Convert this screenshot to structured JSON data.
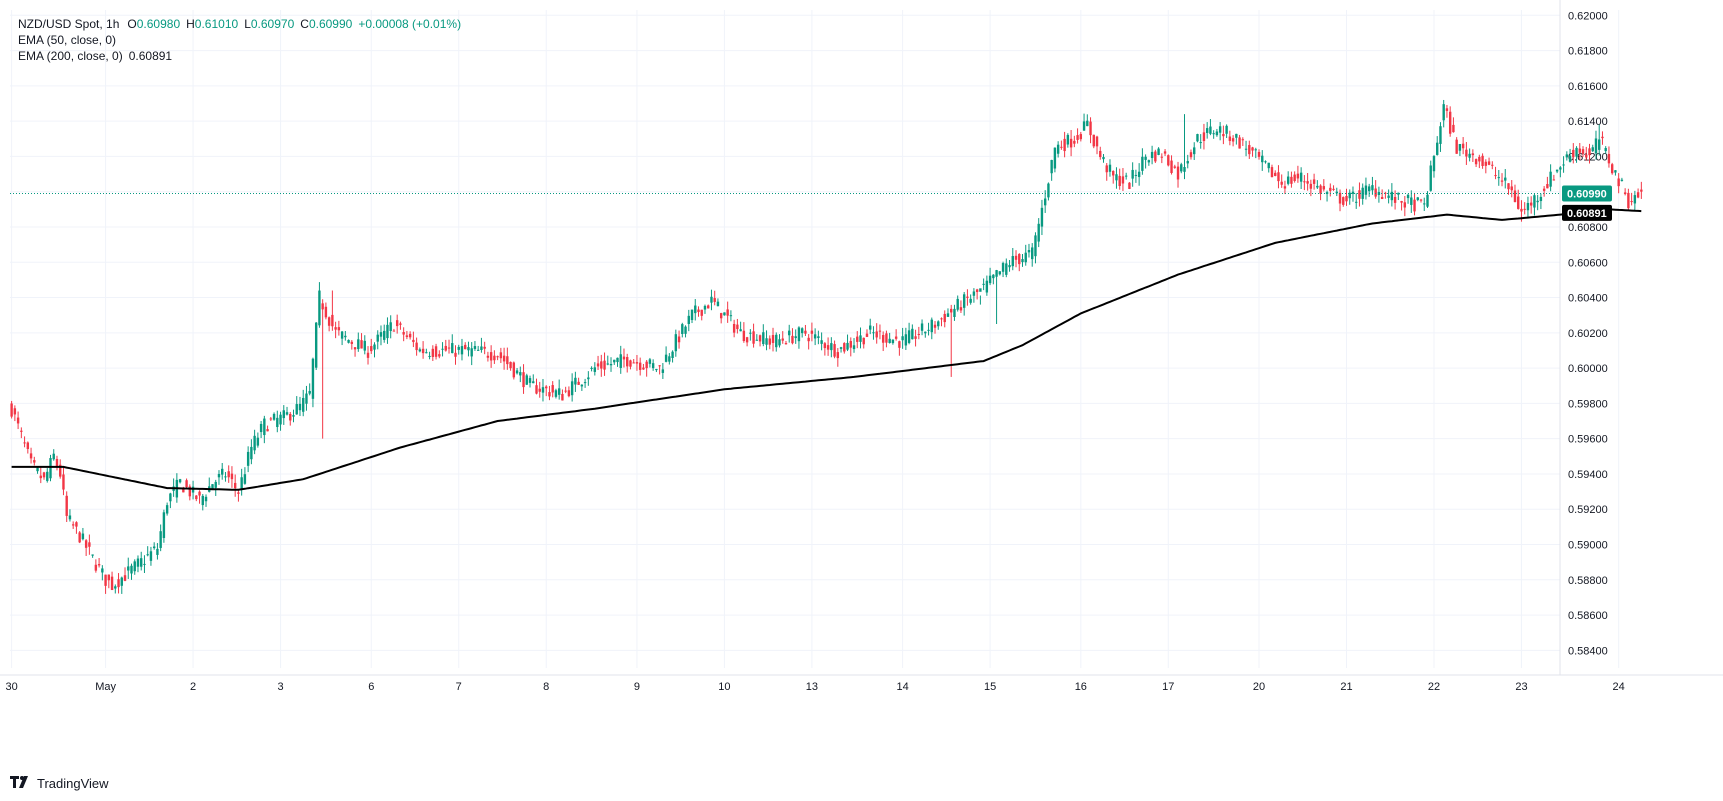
{
  "legend": {
    "symbol": "NZD/USD Spot",
    "interval": "1h",
    "open_label": "O",
    "open": "0.60980",
    "high_label": "H",
    "high": "0.61010",
    "low_label": "L",
    "low": "0.60970",
    "close_label": "C",
    "close": "0.60990",
    "change": "+0.00008 (+0.01%)",
    "ema50": "EMA (50, close, 0)",
    "ema200": "EMA (200, close, 0)",
    "ema200_value": "0.60891"
  },
  "brand": {
    "name": "TradingView",
    "icon": "tradingview-logo-icon"
  },
  "colors": {
    "up": "#089981",
    "down": "#f23645",
    "ema": "#000000",
    "grid": "#f0f3fa",
    "last_price_bg": "#089981",
    "ema_label_bg": "#000000"
  },
  "chart_data": {
    "type": "candlestick",
    "title": "NZD/USD Spot, 1h",
    "ylim": [
      0.583,
      0.6203
    ],
    "y_ticks": [
      "0.62000",
      "0.61800",
      "0.61600",
      "0.61400",
      "0.61200",
      "0.61000",
      "0.60800",
      "0.60600",
      "0.60400",
      "0.60200",
      "0.60000",
      "0.59800",
      "0.59600",
      "0.59400",
      "0.59200",
      "0.59000",
      "0.58800",
      "0.58600",
      "0.58400"
    ],
    "x_ticks": [
      "30",
      "May",
      "2",
      "3",
      "6",
      "7",
      "8",
      "9",
      "10",
      "13",
      "14",
      "15",
      "16",
      "17",
      "20",
      "21",
      "22",
      "23",
      "24"
    ],
    "price_anchors": [
      [
        0,
        0.5977
      ],
      [
        6,
        0.5945
      ],
      [
        10,
        0.5936
      ],
      [
        13,
        0.595
      ],
      [
        15,
        0.594
      ],
      [
        17,
        0.5915
      ],
      [
        21,
        0.5905
      ],
      [
        25,
        0.5892
      ],
      [
        29,
        0.588
      ],
      [
        31,
        0.5877
      ],
      [
        38,
        0.5887
      ],
      [
        45,
        0.5898
      ],
      [
        48,
        0.5925
      ],
      [
        52,
        0.5935
      ],
      [
        58,
        0.5925
      ],
      [
        62,
        0.5935
      ],
      [
        66,
        0.594
      ],
      [
        70,
        0.593
      ],
      [
        74,
        0.5955
      ],
      [
        78,
        0.5968
      ],
      [
        84,
        0.5972
      ],
      [
        89,
        0.5978
      ],
      [
        92,
        0.5985
      ],
      [
        95,
        0.604
      ],
      [
        100,
        0.602
      ],
      [
        110,
        0.601
      ],
      [
        118,
        0.6025
      ],
      [
        126,
        0.601
      ],
      [
        140,
        0.601
      ],
      [
        150,
        0.6008
      ],
      [
        160,
        0.599
      ],
      [
        170,
        0.5985
      ],
      [
        180,
        0.6
      ],
      [
        190,
        0.6005
      ],
      [
        200,
        0.6
      ],
      [
        210,
        0.603
      ],
      [
        216,
        0.6038
      ],
      [
        225,
        0.602
      ],
      [
        235,
        0.6015
      ],
      [
        245,
        0.602
      ],
      [
        255,
        0.601
      ],
      [
        265,
        0.602
      ],
      [
        275,
        0.6015
      ],
      [
        285,
        0.6025
      ],
      [
        292,
        0.6035
      ],
      [
        300,
        0.6045
      ],
      [
        308,
        0.606
      ],
      [
        315,
        0.6065
      ],
      [
        318,
        0.609
      ],
      [
        322,
        0.6125
      ],
      [
        328,
        0.613
      ],
      [
        332,
        0.6138
      ],
      [
        336,
        0.612
      ],
      [
        340,
        0.6108
      ],
      [
        345,
        0.6105
      ],
      [
        350,
        0.612
      ],
      [
        355,
        0.6122
      ],
      [
        360,
        0.611
      ],
      [
        366,
        0.613
      ],
      [
        372,
        0.6136
      ],
      [
        378,
        0.613
      ],
      [
        385,
        0.6118
      ],
      [
        392,
        0.6105
      ],
      [
        398,
        0.6108
      ],
      [
        405,
        0.61
      ],
      [
        412,
        0.6095
      ],
      [
        420,
        0.6102
      ],
      [
        428,
        0.6095
      ],
      [
        436,
        0.6092
      ],
      [
        442,
        0.6148
      ],
      [
        446,
        0.6125
      ],
      [
        452,
        0.612
      ],
      [
        458,
        0.611
      ],
      [
        463,
        0.61
      ],
      [
        466,
        0.6088
      ],
      [
        472,
        0.61
      ],
      [
        478,
        0.6115
      ],
      [
        483,
        0.6125
      ],
      [
        487,
        0.612
      ],
      [
        490,
        0.613
      ],
      [
        495,
        0.611
      ],
      [
        499,
        0.6095
      ],
      [
        503,
        0.6099
      ]
    ],
    "ema200_anchors": [
      [
        0,
        0.5944
      ],
      [
        16,
        0.5944
      ],
      [
        48,
        0.5932
      ],
      [
        70,
        0.5931
      ],
      [
        90,
        0.5937
      ],
      [
        120,
        0.5955
      ],
      [
        150,
        0.597
      ],
      [
        180,
        0.5977
      ],
      [
        220,
        0.5988
      ],
      [
        260,
        0.5995
      ],
      [
        300,
        0.6004
      ],
      [
        312,
        0.6013
      ],
      [
        330,
        0.6031
      ],
      [
        360,
        0.6053
      ],
      [
        390,
        0.6071
      ],
      [
        420,
        0.6082
      ],
      [
        443,
        0.6087
      ],
      [
        460,
        0.6084
      ],
      [
        478,
        0.6087
      ],
      [
        493,
        0.609
      ],
      [
        503,
        0.6089
      ]
    ],
    "x_tick_bars": [
      0,
      29,
      56,
      83,
      111,
      138,
      165,
      193,
      220,
      247,
      275,
      302,
      330,
      357,
      385,
      412,
      439,
      466,
      496
    ],
    "spike_bars": {
      "highs": [
        [
          99,
          0.6044
        ],
        [
          362,
          0.6144
        ],
        [
          442,
          0.6152
        ],
        [
          490,
          0.6138
        ],
        [
          299,
          0.6036
        ]
      ],
      "lows": [
        [
          31,
          0.5875
        ],
        [
          96,
          0.596
        ],
        [
          290,
          0.5995
        ],
        [
          304,
          0.6025
        ],
        [
          466,
          0.6083
        ]
      ]
    },
    "last_price": "0.60990",
    "ema200_last": "0.60891",
    "bar_count": 504
  }
}
